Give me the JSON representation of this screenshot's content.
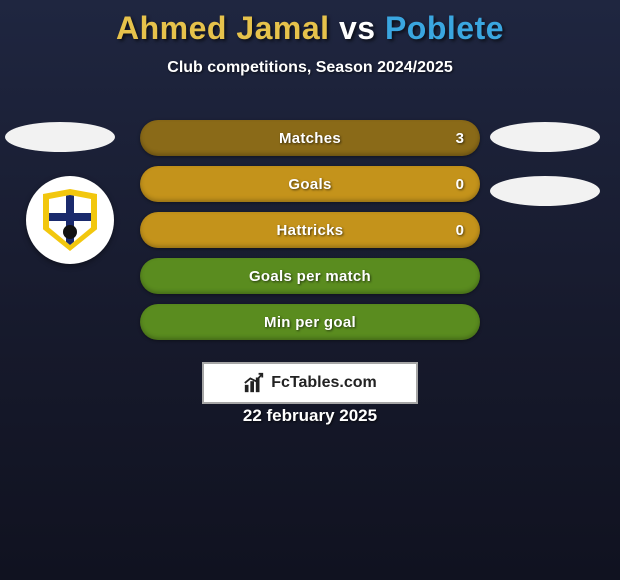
{
  "header": {
    "title_parts": [
      {
        "text": "Ahmed Jamal",
        "color": "#e6c24b"
      },
      {
        "text": " vs ",
        "color": "#ffffff"
      },
      {
        "text": "Poblete",
        "color": "#3aa6e0"
      }
    ],
    "subtitle": "Club competitions, Season 2024/2025"
  },
  "colors": {
    "row_dark": "#8a6a18",
    "row_light": "#c4931b",
    "row_green": "#5a8c1f",
    "slot_bg": "#f2f2f2"
  },
  "stats": {
    "rows": [
      {
        "label": "Matches",
        "value": "3",
        "bg_key": "row_dark"
      },
      {
        "label": "Goals",
        "value": "0",
        "bg_key": "row_light"
      },
      {
        "label": "Hattricks",
        "value": "0",
        "bg_key": "row_light"
      },
      {
        "label": "Goals per match",
        "value": "",
        "bg_key": "row_green"
      },
      {
        "label": "Min per goal",
        "value": "",
        "bg_key": "row_green"
      }
    ]
  },
  "brand": {
    "text": "FcTables.com"
  },
  "footer": {
    "date": "22 february 2025"
  }
}
